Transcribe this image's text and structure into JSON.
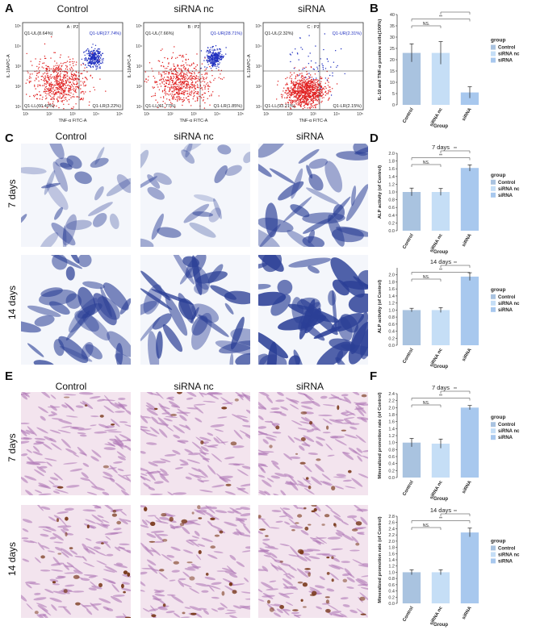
{
  "panels": {
    "a": "A",
    "b": "B",
    "c": "C",
    "d": "D",
    "e": "E",
    "f": "F"
  },
  "groups": {
    "control": "Control",
    "nc": "siRNA nc",
    "si": "siRNA"
  },
  "rows": {
    "d7": "7 days",
    "d14": "14 days"
  },
  "colors": {
    "control": "#a9c3e0",
    "nc": "#c5def6",
    "si": "#a8c8ee",
    "alp": "#2b3f96",
    "ars": "#7a3a1c",
    "fcs_red": "#e02020",
    "fcs_blue": "#1f2fbf"
  },
  "flow": [
    {
      "header": "A : P2",
      "ul": "Q1-UL(8.64%)",
      "ur": "Q1-UR(27.74%)",
      "ll": "Q1-LL(60.40%)",
      "lr": "Q1-LR(3.22%)",
      "yaxis": "IL-10APC-A",
      "xaxis": "TNF-α FITC-A"
    },
    {
      "header": "B : P2",
      "ul": "Q1-UL(7.66%)",
      "ur": "Q1-UR(28.71%)",
      "ll": "Q1-LL(61.77%)",
      "lr": "Q1-LR(1.85%)",
      "yaxis": "IL-10APC-A",
      "xaxis": "TNF-α FITC-A"
    },
    {
      "header": "C : P2",
      "ul": "Q1-UL(2.32%)",
      "ur": "Q1-UR(2.31%)",
      "ll": "Q1-LL(93.21%)",
      "lr": "Q1-LR(2.15%)",
      "yaxis": "IL-10APC-A",
      "xaxis": "TNF-α FITC-A"
    }
  ],
  "chart_data": [
    {
      "id": "B",
      "type": "bar",
      "title": "",
      "ylabel": "IL-10 and TNF-α positive cells(100%)",
      "xlabel": "Group",
      "categories": [
        "Control",
        "siRNA nc",
        "siRNA"
      ],
      "values": [
        23,
        23,
        5.5
      ],
      "errors": [
        4,
        5,
        2.5
      ],
      "ylim": [
        0,
        40
      ],
      "yticks": [
        0,
        5,
        10,
        15,
        20,
        25,
        30,
        35,
        40
      ],
      "sig": [
        {
          "label": "NS.",
          "from": 0,
          "to": 1
        },
        {
          "label": "**",
          "from": 0,
          "to": 2
        },
        {
          "label": "*",
          "from": 1,
          "to": 2
        }
      ],
      "legend_title": "group",
      "legend": [
        "Control",
        "siRNA nc",
        "siRNA"
      ]
    },
    {
      "id": "D7",
      "type": "bar",
      "title": "7 days",
      "ylabel": "ALP activity (of Control)",
      "xlabel": "Group",
      "categories": [
        "Control",
        "siRNA nc",
        "siRNA"
      ],
      "values": [
        1.0,
        1.0,
        1.62
      ],
      "errors": [
        0.1,
        0.09,
        0.08
      ],
      "ylim": [
        0,
        2.0
      ],
      "yticks": [
        0.0,
        0.2,
        0.4,
        0.6,
        0.8,
        1.0,
        1.2,
        1.4,
        1.6,
        1.8,
        2.0
      ],
      "sig": [
        {
          "label": "NS.",
          "from": 0,
          "to": 1
        },
        {
          "label": "**",
          "from": 0,
          "to": 2
        },
        {
          "label": "**",
          "from": 1,
          "to": 2
        }
      ],
      "legend_title": "group",
      "legend": [
        "Control",
        "siRNA nc",
        "siRNA"
      ]
    },
    {
      "id": "D14",
      "type": "bar",
      "title": "14 days",
      "ylabel": "ALP activity (of Control)",
      "xlabel": "Group",
      "categories": [
        "Control",
        "siRNA nc",
        "siRNA"
      ],
      "values": [
        1.0,
        1.0,
        1.95
      ],
      "errors": [
        0.05,
        0.07,
        0.11
      ],
      "ylim": [
        0,
        2.2
      ],
      "yticks": [
        0.0,
        0.2,
        0.4,
        0.6,
        0.8,
        1.0,
        1.2,
        1.4,
        1.6,
        1.8,
        2.0
      ],
      "sig": [
        {
          "label": "NS.",
          "from": 0,
          "to": 1
        },
        {
          "label": "**",
          "from": 0,
          "to": 2
        },
        {
          "label": "**",
          "from": 1,
          "to": 2
        }
      ],
      "legend_title": "group",
      "legend": [
        "Control",
        "siRNA nc",
        "siRNA"
      ]
    },
    {
      "id": "F7",
      "type": "bar",
      "title": "7 days",
      "ylabel": "Mineralized promotion rate (of Control)",
      "xlabel": "Group",
      "categories": [
        "Control",
        "siRNA nc",
        "siRNA"
      ],
      "values": [
        1.0,
        0.97,
        2.0
      ],
      "errors": [
        0.12,
        0.13,
        0.06
      ],
      "ylim": [
        0,
        2.4
      ],
      "yticks": [
        0.0,
        0.2,
        0.4,
        0.6,
        0.8,
        1.0,
        1.2,
        1.4,
        1.6,
        1.8,
        2.0,
        2.2,
        2.4
      ],
      "sig": [
        {
          "label": "NS.",
          "from": 0,
          "to": 1
        },
        {
          "label": "**",
          "from": 0,
          "to": 2
        },
        {
          "label": "**",
          "from": 1,
          "to": 2
        }
      ],
      "legend_title": "group",
      "legend": [
        "Control",
        "siRNA nc",
        "siRNA"
      ]
    },
    {
      "id": "F14",
      "type": "bar",
      "title": "14 days",
      "ylabel": "Mineralized promotion rate (of Control)",
      "xlabel": "Group",
      "categories": [
        "Control",
        "siRNA nc",
        "siRNA"
      ],
      "values": [
        1.0,
        1.0,
        2.28
      ],
      "errors": [
        0.08,
        0.08,
        0.14
      ],
      "ylim": [
        0,
        2.8
      ],
      "yticks": [
        0.0,
        0.2,
        0.4,
        0.6,
        0.8,
        1.0,
        1.2,
        1.4,
        1.6,
        1.8,
        2.0,
        2.2,
        2.4,
        2.6,
        2.8
      ],
      "sig": [
        {
          "label": "NS.",
          "from": 0,
          "to": 1
        },
        {
          "label": "**",
          "from": 0,
          "to": 2
        },
        {
          "label": "**",
          "from": 1,
          "to": 2
        }
      ],
      "legend_title": "group",
      "legend": [
        "Control",
        "siRNA nc",
        "siRNA"
      ]
    }
  ]
}
